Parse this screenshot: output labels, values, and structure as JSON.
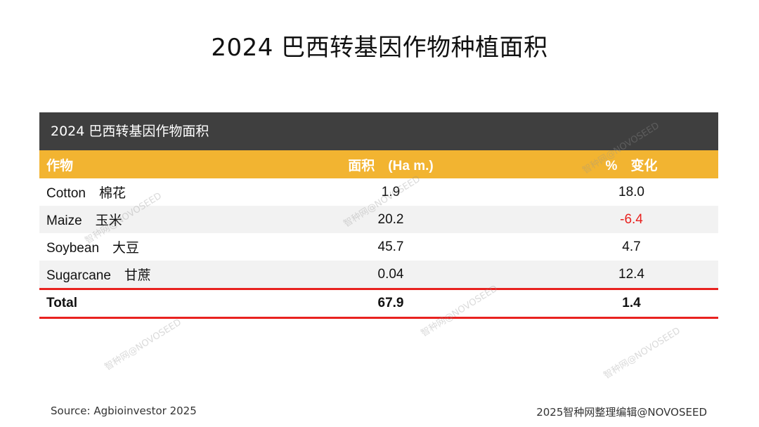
{
  "title": "2024 巴西转基因作物种植面积",
  "table": {
    "caption": "2024 巴西转基因作物面积",
    "header": {
      "crop": "作物",
      "area": "面积　(Ha m.)",
      "change": "%　变化"
    },
    "rows": [
      {
        "crop": "Cotton　棉花",
        "area": "1.9",
        "change": "18.0"
      },
      {
        "crop": "Maize　玉米",
        "area": "20.2",
        "change": "-6.4"
      },
      {
        "crop": "Soybean　大豆",
        "area": "45.7",
        "change": "4.7"
      },
      {
        "crop": "Sugarcane　甘蔗",
        "area": "0.04",
        "change": "12.4"
      }
    ],
    "total": {
      "crop": "Total",
      "area": "67.9",
      "change": "1.4"
    }
  },
  "watermark": "智种网@NOVOSEED",
  "footer": {
    "source": "Source: Agbioinvestor 2025",
    "credit": "2025智种网整理编辑@NOVOSEED"
  },
  "colors": {
    "caption_bg": "#3f3f3f",
    "header_bg": "#f2b431",
    "negative": "#e8221f",
    "total_border": "#e8221f"
  }
}
